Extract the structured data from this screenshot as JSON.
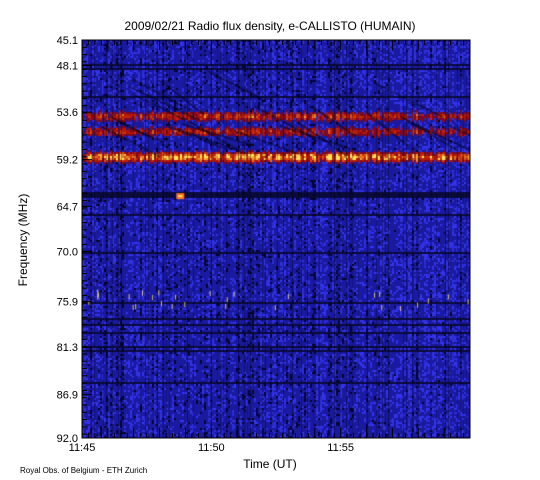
{
  "chart_data": {
    "type": "heatmap",
    "title": "2009/02/21  Radio flux density, e-CALLISTO (HUMAIN)",
    "xlabel": "Time (UT)",
    "ylabel": "Frequency (MHz)",
    "x_ticks": [
      "11:45",
      "11:50",
      "11:55"
    ],
    "x_tick_minutes": [
      0,
      5,
      10
    ],
    "x_range_minutes": [
      0,
      15
    ],
    "y_ticks": [
      "45.1",
      "48.1",
      "53.6",
      "59.2",
      "64.7",
      "70.0",
      "75.9",
      "81.3",
      "86.9",
      "92.0"
    ],
    "y_range_mhz": [
      45.1,
      92.0
    ],
    "colors": {
      "background": "#1a1aa0",
      "low": "#000010",
      "mid": "#3030d8",
      "burst_low": "#b01000",
      "burst_high": "#ffe060"
    },
    "features": [
      {
        "kind": "bright_band",
        "frequency_mhz": 58.8,
        "intensity": 1.0
      },
      {
        "kind": "bright_band",
        "frequency_mhz": 54.0,
        "intensity": 0.6
      },
      {
        "kind": "bright_band",
        "frequency_mhz": 55.8,
        "intensity": 0.55
      },
      {
        "kind": "bright_spot",
        "frequency_mhz": 63.5,
        "time_minutes": 3.8,
        "intensity": 0.9
      }
    ]
  },
  "footer": "Royal Obs. of Belgium - ETH Zurich"
}
